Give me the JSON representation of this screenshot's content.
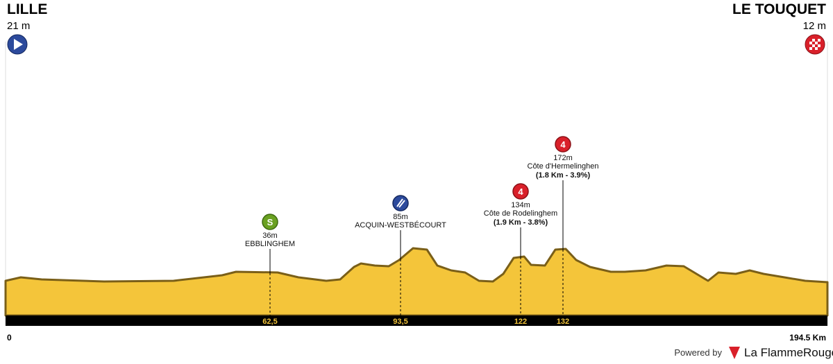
{
  "start": {
    "name": "LILLE",
    "altitude": "21 m"
  },
  "finish": {
    "name": "LE TOUQUET",
    "altitude": "12 m"
  },
  "points": [
    {
      "marker": "S",
      "altitude": "36m",
      "name": "EBBLINGHEM",
      "km": "62,5"
    },
    {
      "altitude": "85m",
      "name": "ACQUIN-WESTBÉCOURT",
      "km": "93,5"
    },
    {
      "marker": "4",
      "altitude": "134m",
      "name": "Côte de Rodelinghem",
      "detail": "(1.9 Km - 3.8%)",
      "km": "122"
    },
    {
      "marker": "4",
      "altitude": "172m",
      "name": "Côte d'Hermelinghen",
      "detail": "(1.8 Km - 3.9%)",
      "km": "132"
    }
  ],
  "axis": {
    "start": "0",
    "end": "194.5 Km"
  },
  "footer": {
    "powered": "Powered by",
    "brand": "La FlammeRouge"
  }
}
